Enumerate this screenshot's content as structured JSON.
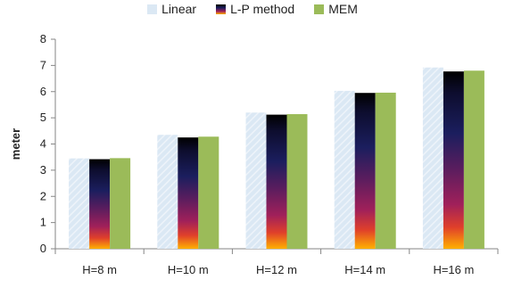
{
  "chart_data": {
    "type": "bar",
    "categories": [
      "H=8 m",
      "H=10 m",
      "H=12 m",
      "H=14 m",
      "H=16 m"
    ],
    "series": [
      {
        "name": "Linear",
        "values": [
          3.45,
          4.35,
          5.2,
          6.03,
          6.92
        ],
        "color": "#dbe8f4"
      },
      {
        "name": "L-P method",
        "values": [
          3.42,
          4.25,
          5.12,
          5.95,
          6.77
        ],
        "color": "#3a1450"
      },
      {
        "name": "MEM",
        "values": [
          3.46,
          4.28,
          5.14,
          5.96,
          6.8
        ],
        "color": "#9bbb59"
      }
    ],
    "title": "",
    "xlabel": "",
    "ylabel": "meter",
    "ylim": [
      0,
      8
    ],
    "yticks": [
      "0",
      "1",
      "2",
      "3",
      "4",
      "5",
      "6",
      "7",
      "8"
    ],
    "grid": false,
    "legend_position": "top"
  }
}
